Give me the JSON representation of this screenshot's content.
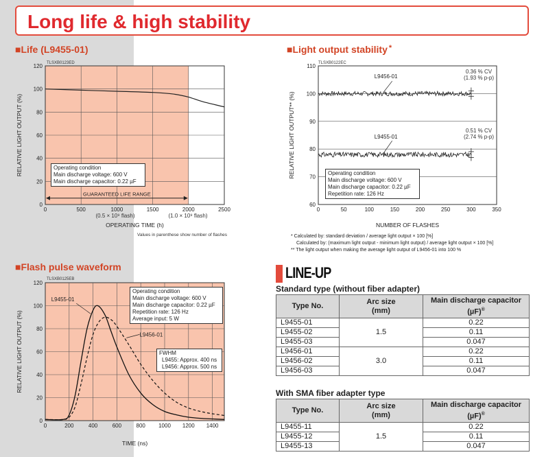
{
  "page": {
    "title": "Long life & high stability"
  },
  "colors": {
    "accent": "#e34b3c",
    "plot_bg": "#f9c4ad",
    "header_bg": "#d9d9d9"
  },
  "sections": {
    "life": "■Life (L9455-01)",
    "stability": "■Light output stability",
    "stability_star": "*",
    "pulse": "■Flash pulse waveform"
  },
  "life_chart": {
    "code": "TLSXB0123ED",
    "x_under_1000": "(0.5 × 10⁹ flash)",
    "x_under_2000": "(1.0 × 10⁹ flash)",
    "guarantee_label": "GUARANTEED LIFE RANGE",
    "box_lines": [
      "Operating condition",
      "Main discharge voltage: 600 V",
      "Main discharge capacitor: 0.22 µF"
    ],
    "note": "Values in parenthese show number of flashes"
  },
  "stability_chart": {
    "code": "TLSXB0122EC",
    "cv1_a": "0.36 % CV",
    "cv1_b": "(1.93 % p-p)",
    "cv2_a": "0.51 % CV",
    "cv2_b": "(2.74 % p-p)",
    "box_lines": [
      "Operating condition",
      "Main discharge voltage: 600 V",
      "Main discharge capacitor: 0.22 µF",
      "Repetition rate: 126 Hz"
    ]
  },
  "footnotes": [
    "* Calculated by: standard deviation / average light output × 100 [%]",
    "Calculated by: (maximum light output - minimum light output) / average light output × 100 [%]",
    "** The light output when making the average light output of L9456-01 into 100 %"
  ],
  "pulse_chart": {
    "code": "TLSXB0125EB",
    "box_lines": [
      "Operating condition",
      "Main discharge voltage: 600 V",
      "Main discharge capacitor: 0.22 µF",
      "Repetition rate: 126 Hz",
      "Average input: 5 W"
    ],
    "fwhm_lines": [
      "FWHM",
      "L9455: Approx. 400 ns",
      "L9456: Approx. 500 ns"
    ]
  },
  "lineup": {
    "heading": "LINE-UP",
    "standard_title": "Standard type (without fiber adapter)",
    "sma_title": "With SMA fiber adapter type",
    "headers": {
      "type": "Type No.",
      "arc": "Arc size\n(mm)",
      "cap": "Main discharge capacitor\n(µF)",
      "cap_mark": "®"
    },
    "standard_rows": [
      {
        "type": "L9455-01",
        "cap": "0.22"
      },
      {
        "type": "L9455-02",
        "cap": "0.11"
      },
      {
        "type": "L9455-03",
        "cap": "0.047"
      },
      {
        "type": "L9456-01",
        "cap": "0.22"
      },
      {
        "type": "L9456-02",
        "cap": "0.11"
      },
      {
        "type": "L9456-03",
        "cap": "0.047"
      }
    ],
    "standard_arc": [
      "1.5",
      "3.0"
    ],
    "sma_rows": [
      {
        "type": "L9455-11",
        "cap": "0.22"
      },
      {
        "type": "L9455-12",
        "cap": "0.11"
      },
      {
        "type": "L9455-13",
        "cap": "0.047"
      }
    ],
    "sma_arc": "1.5"
  },
  "chart_data": [
    {
      "type": "line",
      "xlabel": "OPERATING TIME (h)",
      "ylabel": "RELATIVE LIGHT OUTPUT (%)",
      "xlim": [
        0,
        2500
      ],
      "ylim": [
        0,
        120
      ],
      "xticks": [
        0,
        500,
        1000,
        1500,
        2000,
        2500
      ],
      "yticks": [
        0,
        20,
        40,
        60,
        80,
        100,
        120
      ],
      "series": [
        {
          "x": [
            0,
            500,
            1000,
            1500,
            1800,
            2000,
            2200,
            2500
          ],
          "y": [
            100,
            99,
            98,
            97,
            95.5,
            93,
            89,
            84.5
          ]
        }
      ],
      "guarantee_range": [
        0,
        2000
      ],
      "grid": true
    },
    {
      "type": "line",
      "xlabel": "NUMBER OF FLASHES",
      "ylabel": "RELATIVE LIGHT OUTPUT** (%)",
      "xlim": [
        0,
        350
      ],
      "ylim": [
        60,
        110
      ],
      "xticks": [
        0,
        50,
        100,
        150,
        200,
        250,
        300,
        350
      ],
      "yticks": [
        60,
        70,
        80,
        90,
        100,
        110
      ],
      "series": [
        {
          "name": "L9456-01",
          "x_range": [
            0,
            300
          ],
          "mean": 100,
          "pp_percent": 1.93
        },
        {
          "name": "L9455-01",
          "x_range": [
            0,
            300
          ],
          "mean": 78,
          "pp_percent": 2.74
        }
      ],
      "grid": true
    },
    {
      "type": "line",
      "xlabel": "TIME (ns)",
      "ylabel": "RELATIVE LIGHT OUTPUT (%)",
      "xlim": [
        0,
        1500
      ],
      "ylim": [
        0,
        120
      ],
      "xticks": [
        0,
        200,
        400,
        600,
        800,
        1000,
        1200,
        1400
      ],
      "yticks": [
        0,
        20,
        40,
        60,
        80,
        100,
        120
      ],
      "series": [
        {
          "name": "L9455-01",
          "x": [
            0,
            150,
            200,
            250,
            300,
            350,
            400,
            440,
            500,
            550,
            600,
            700,
            800,
            900,
            1000,
            1100,
            1200,
            1300,
            1400,
            1500
          ],
          "y": [
            1,
            1,
            5,
            22,
            52,
            80,
            96,
            100,
            92,
            78,
            64,
            40,
            24,
            14,
            8,
            5,
            3,
            2,
            1.5,
            1
          ]
        },
        {
          "name": "L9456-01",
          "x": [
            0,
            150,
            200,
            250,
            300,
            350,
            400,
            450,
            500,
            550,
            600,
            700,
            800,
            900,
            1000,
            1100,
            1200,
            1300,
            1400,
            1500
          ],
          "y": [
            1,
            1,
            3,
            12,
            32,
            55,
            75,
            86,
            90,
            88,
            82,
            66,
            49,
            35,
            24,
            16,
            11,
            8,
            6,
            4.5
          ]
        }
      ],
      "grid": true
    }
  ]
}
